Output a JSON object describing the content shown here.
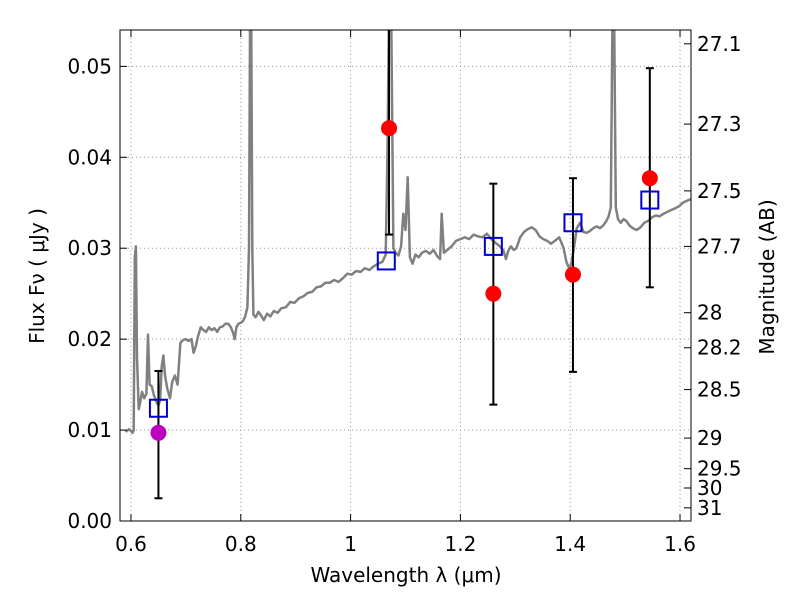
{
  "chart_data": {
    "type": "scatter",
    "xlabel": "Wavelength  λ (μm)",
    "ylabel": "Flux  Fν  ( μJy )",
    "y2label": "Magnitude (AB)",
    "xlim": [
      0.58,
      1.62
    ],
    "ylim": [
      0.0,
      0.054
    ],
    "grid": true,
    "x_ticks": [
      {
        "value": 0.6,
        "label": "0.6"
      },
      {
        "value": 0.8,
        "label": "0.8"
      },
      {
        "value": 1.0,
        "label": "1"
      },
      {
        "value": 1.2,
        "label": "1.2"
      },
      {
        "value": 1.4,
        "label": "1.4"
      },
      {
        "value": 1.6,
        "label": "1.6"
      }
    ],
    "y_ticks": [
      {
        "value": 0.0,
        "label": "0.00"
      },
      {
        "value": 0.01,
        "label": "0.01"
      },
      {
        "value": 0.02,
        "label": "0.02"
      },
      {
        "value": 0.03,
        "label": "0.03"
      },
      {
        "value": 0.04,
        "label": "0.04"
      },
      {
        "value": 0.05,
        "label": "0.05"
      }
    ],
    "y2_ticks": [
      {
        "mag": 27.1,
        "label": "27.1"
      },
      {
        "mag": 27.3,
        "label": "27.3"
      },
      {
        "mag": 27.5,
        "label": "27.5"
      },
      {
        "mag": 27.7,
        "label": "27.7"
      },
      {
        "mag": 28.0,
        "label": "28"
      },
      {
        "mag": 28.2,
        "label": "28.2"
      },
      {
        "mag": 28.5,
        "label": "28.5"
      },
      {
        "mag": 29.0,
        "label": "29"
      },
      {
        "mag": 29.5,
        "label": "29.5"
      },
      {
        "mag": 30.0,
        "label": "30"
      },
      {
        "mag": 31.0,
        "label": "31"
      }
    ],
    "colors": {
      "spectrum": "#808080",
      "observed": "#ff0000",
      "observed_uv": "#bf00bf",
      "model": "#0000cc",
      "errorbar": "#000000",
      "grid": "#999999"
    },
    "spectrum": [
      [
        0.59,
        0.0098
      ],
      [
        0.597,
        0.0101
      ],
      [
        0.603,
        0.0097
      ],
      [
        0.605,
        0.01
      ],
      [
        0.607,
        0.029
      ],
      [
        0.609,
        0.0302
      ],
      [
        0.611,
        0.018
      ],
      [
        0.614,
        0.0123
      ],
      [
        0.617,
        0.0131
      ],
      [
        0.62,
        0.0142
      ],
      [
        0.624,
        0.0135
      ],
      [
        0.628,
        0.014
      ],
      [
        0.631,
        0.0205
      ],
      [
        0.634,
        0.015
      ],
      [
        0.638,
        0.0148
      ],
      [
        0.642,
        0.0138
      ],
      [
        0.647,
        0.013
      ],
      [
        0.65,
        0.0127
      ],
      [
        0.653,
        0.0133
      ],
      [
        0.656,
        0.017
      ],
      [
        0.659,
        0.0182
      ],
      [
        0.662,
        0.016
      ],
      [
        0.666,
        0.0146
      ],
      [
        0.671,
        0.0135
      ],
      [
        0.675,
        0.0153
      ],
      [
        0.68,
        0.016
      ],
      [
        0.685,
        0.015
      ],
      [
        0.69,
        0.0196
      ],
      [
        0.695,
        0.0199
      ],
      [
        0.7,
        0.02
      ],
      [
        0.705,
        0.0198
      ],
      [
        0.71,
        0.02
      ],
      [
        0.714,
        0.0185
      ],
      [
        0.718,
        0.0192
      ],
      [
        0.722,
        0.0203
      ],
      [
        0.727,
        0.0213
      ],
      [
        0.732,
        0.021
      ],
      [
        0.737,
        0.0208
      ],
      [
        0.742,
        0.0213
      ],
      [
        0.747,
        0.021
      ],
      [
        0.752,
        0.0212
      ],
      [
        0.757,
        0.0208
      ],
      [
        0.762,
        0.0213
      ],
      [
        0.767,
        0.0214
      ],
      [
        0.772,
        0.0217
      ],
      [
        0.777,
        0.0217
      ],
      [
        0.782,
        0.0213
      ],
      [
        0.786,
        0.0207
      ],
      [
        0.789,
        0.02
      ],
      [
        0.792,
        0.0213
      ],
      [
        0.796,
        0.0217
      ],
      [
        0.8,
        0.0218
      ],
      [
        0.804,
        0.022
      ],
      [
        0.808,
        0.0225
      ],
      [
        0.812,
        0.0235
      ],
      [
        0.815,
        0.03
      ],
      [
        0.817,
        0.056
      ],
      [
        0.819,
        0.056
      ],
      [
        0.821,
        0.03
      ],
      [
        0.823,
        0.0227
      ],
      [
        0.827,
        0.0224
      ],
      [
        0.832,
        0.023
      ],
      [
        0.837,
        0.0226
      ],
      [
        0.842,
        0.0221
      ],
      [
        0.848,
        0.0228
      ],
      [
        0.854,
        0.0225
      ],
      [
        0.86,
        0.0231
      ],
      [
        0.867,
        0.0229
      ],
      [
        0.874,
        0.0234
      ],
      [
        0.882,
        0.0235
      ],
      [
        0.89,
        0.0241
      ],
      [
        0.898,
        0.024
      ],
      [
        0.906,
        0.0245
      ],
      [
        0.914,
        0.0247
      ],
      [
        0.922,
        0.0251
      ],
      [
        0.93,
        0.0252
      ],
      [
        0.938,
        0.0257
      ],
      [
        0.946,
        0.0258
      ],
      [
        0.954,
        0.0262
      ],
      [
        0.962,
        0.0262
      ],
      [
        0.97,
        0.0265
      ],
      [
        0.978,
        0.0263
      ],
      [
        0.986,
        0.0267
      ],
      [
        0.994,
        0.0272
      ],
      [
        1.002,
        0.0271
      ],
      [
        1.01,
        0.0275
      ],
      [
        1.018,
        0.0274
      ],
      [
        1.026,
        0.0278
      ],
      [
        1.034,
        0.0276
      ],
      [
        1.042,
        0.028
      ],
      [
        1.05,
        0.0283
      ],
      [
        1.058,
        0.0285
      ],
      [
        1.064,
        0.0293
      ],
      [
        1.067,
        0.04
      ],
      [
        1.07,
        0.056
      ],
      [
        1.074,
        0.056
      ],
      [
        1.078,
        0.03
      ],
      [
        1.082,
        0.0295
      ],
      [
        1.087,
        0.0292
      ],
      [
        1.092,
        0.0302
      ],
      [
        1.096,
        0.0338
      ],
      [
        1.1,
        0.032
      ],
      [
        1.104,
        0.0378
      ],
      [
        1.108,
        0.029
      ],
      [
        1.113,
        0.0283
      ],
      [
        1.118,
        0.0293
      ],
      [
        1.124,
        0.029
      ],
      [
        1.13,
        0.0295
      ],
      [
        1.137,
        0.0297
      ],
      [
        1.144,
        0.0294
      ],
      [
        1.151,
        0.0298
      ],
      [
        1.158,
        0.0291
      ],
      [
        1.163,
        0.0288
      ],
      [
        1.166,
        0.0338
      ],
      [
        1.17,
        0.0295
      ],
      [
        1.176,
        0.0298
      ],
      [
        1.184,
        0.0302
      ],
      [
        1.192,
        0.0308
      ],
      [
        1.2,
        0.031
      ],
      [
        1.208,
        0.0312
      ],
      [
        1.216,
        0.031
      ],
      [
        1.224,
        0.0315
      ],
      [
        1.232,
        0.0313
      ],
      [
        1.24,
        0.0312
      ],
      [
        1.248,
        0.0316
      ],
      [
        1.256,
        0.031
      ],
      [
        1.264,
        0.0306
      ],
      [
        1.272,
        0.0302
      ],
      [
        1.278,
        0.0298
      ],
      [
        1.283,
        0.0288
      ],
      [
        1.287,
        0.0297
      ],
      [
        1.292,
        0.0302
      ],
      [
        1.297,
        0.0298
      ],
      [
        1.302,
        0.03
      ],
      [
        1.309,
        0.0312
      ],
      [
        1.316,
        0.0318
      ],
      [
        1.323,
        0.0321
      ],
      [
        1.33,
        0.0323
      ],
      [
        1.337,
        0.032
      ],
      [
        1.344,
        0.0313
      ],
      [
        1.351,
        0.031
      ],
      [
        1.358,
        0.0308
      ],
      [
        1.365,
        0.0305
      ],
      [
        1.372,
        0.0308
      ],
      [
        1.38,
        0.0312
      ],
      [
        1.388,
        0.03
      ],
      [
        1.393,
        0.0285
      ],
      [
        1.398,
        0.0278
      ],
      [
        1.402,
        0.0283
      ],
      [
        1.406,
        0.0297
      ],
      [
        1.412,
        0.0322
      ],
      [
        1.418,
        0.0328
      ],
      [
        1.424,
        0.0318
      ],
      [
        1.43,
        0.0317
      ],
      [
        1.436,
        0.0319
      ],
      [
        1.442,
        0.0322
      ],
      [
        1.448,
        0.0324
      ],
      [
        1.454,
        0.0322
      ],
      [
        1.46,
        0.0325
      ],
      [
        1.466,
        0.033
      ],
      [
        1.47,
        0.0335
      ],
      [
        1.474,
        0.0345
      ],
      [
        1.477,
        0.056
      ],
      [
        1.48,
        0.056
      ],
      [
        1.483,
        0.0345
      ],
      [
        1.487,
        0.0332
      ],
      [
        1.492,
        0.0328
      ],
      [
        1.497,
        0.0332
      ],
      [
        1.502,
        0.033
      ],
      [
        1.508,
        0.0325
      ],
      [
        1.514,
        0.0322
      ],
      [
        1.521,
        0.032
      ],
      [
        1.528,
        0.0323
      ],
      [
        1.535,
        0.0328
      ],
      [
        1.542,
        0.033
      ],
      [
        1.549,
        0.0334
      ],
      [
        1.556,
        0.0336
      ],
      [
        1.563,
        0.0335
      ],
      [
        1.57,
        0.0338
      ],
      [
        1.577,
        0.034
      ],
      [
        1.584,
        0.0342
      ],
      [
        1.591,
        0.0344
      ],
      [
        1.598,
        0.0346
      ],
      [
        1.605,
        0.035
      ],
      [
        1.612,
        0.0352
      ],
      [
        1.62,
        0.0354
      ]
    ],
    "observed": [
      {
        "x": 0.65,
        "y": 0.0097,
        "yerr_low": 0.0025,
        "yerr_high": 0.0165,
        "color_key": "observed_uv"
      },
      {
        "x": 1.07,
        "y": 0.0432,
        "yerr_low": 0.0315,
        "yerr_high": 0.056,
        "color_key": "observed"
      },
      {
        "x": 1.26,
        "y": 0.025,
        "yerr_low": 0.0128,
        "yerr_high": 0.0371,
        "color_key": "observed"
      },
      {
        "x": 1.405,
        "y": 0.0271,
        "yerr_low": 0.0164,
        "yerr_high": 0.0377,
        "color_key": "observed"
      },
      {
        "x": 1.545,
        "y": 0.0377,
        "yerr_low": 0.0257,
        "yerr_high": 0.0498,
        "color_key": "observed"
      }
    ],
    "model": [
      {
        "x": 0.65,
        "y": 0.0124
      },
      {
        "x": 1.065,
        "y": 0.0286
      },
      {
        "x": 1.26,
        "y": 0.0302
      },
      {
        "x": 1.405,
        "y": 0.0328
      },
      {
        "x": 1.545,
        "y": 0.0353
      }
    ]
  }
}
